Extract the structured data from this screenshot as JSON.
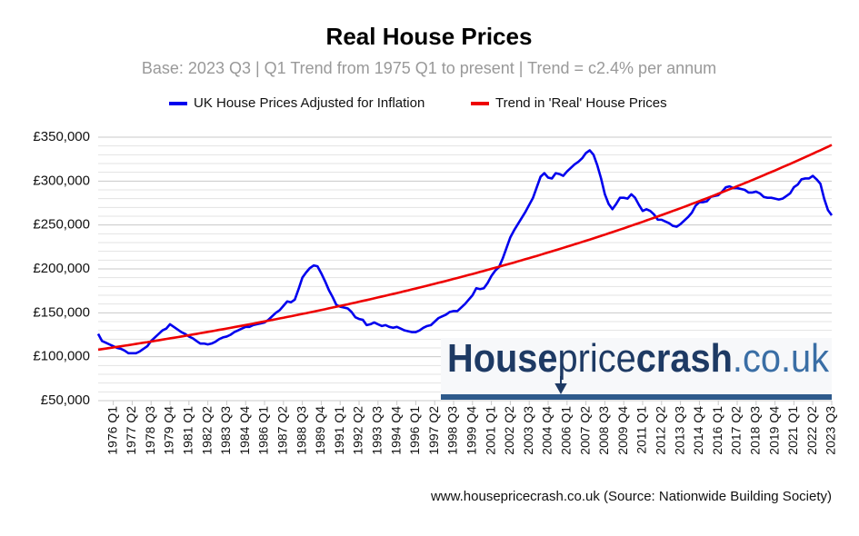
{
  "chart_data": {
    "type": "line",
    "title": "Real House Prices",
    "subtitle": "Base: 2023 Q3 | Q1 Trend from 1975 Q1 to present | Trend = c2.4% per annum",
    "footer": "www.housepricecrash.co.uk (Source: Nationwide Building Society)",
    "watermark": {
      "part1": "House",
      "part2": "price",
      "part3": "crash",
      "part4": ".co.uk"
    },
    "ylim": [
      50000,
      350000
    ],
    "yticks": [
      {
        "value": 50000,
        "label": "£50,000"
      },
      {
        "value": 100000,
        "label": "£100,000"
      },
      {
        "value": 150000,
        "label": "£150,000"
      },
      {
        "value": 200000,
        "label": "£200,000"
      },
      {
        "value": 250000,
        "label": "£250,000"
      },
      {
        "value": 300000,
        "label": "£300,000"
      },
      {
        "value": 350000,
        "label": "£350,000"
      }
    ],
    "minor_yticks": [
      60000,
      70000,
      80000,
      90000,
      110000,
      120000,
      130000,
      140000,
      160000,
      170000,
      180000,
      190000,
      210000,
      220000,
      230000,
      240000,
      260000,
      270000,
      280000,
      290000,
      310000,
      320000,
      330000,
      340000
    ],
    "grid": true,
    "categories": [
      null,
      null,
      null,
      null,
      "1976 Q1",
      null,
      null,
      null,
      null,
      "1977 Q2",
      null,
      null,
      null,
      null,
      "1978 Q3",
      null,
      null,
      null,
      null,
      "1979 Q4",
      null,
      null,
      null,
      null,
      "1981 Q1",
      null,
      null,
      null,
      null,
      "1982 Q2",
      null,
      null,
      null,
      null,
      "1983 Q3",
      null,
      null,
      null,
      null,
      "1984 Q4",
      null,
      null,
      null,
      null,
      "1986 Q1",
      null,
      null,
      null,
      null,
      "1987 Q2",
      null,
      null,
      null,
      null,
      "1988 Q3",
      null,
      null,
      null,
      null,
      "1989 Q4",
      null,
      null,
      null,
      null,
      "1991 Q1",
      null,
      null,
      null,
      null,
      "1992 Q2",
      null,
      null,
      null,
      null,
      "1993 Q3",
      null,
      null,
      null,
      null,
      "1994 Q4",
      null,
      null,
      null,
      null,
      "1996 Q1",
      null,
      null,
      null,
      null,
      "1997 Q2",
      null,
      null,
      null,
      null,
      "1998 Q3",
      null,
      null,
      null,
      null,
      "1999 Q4",
      null,
      null,
      null,
      null,
      "2001 Q1",
      null,
      null,
      null,
      null,
      "2002 Q2",
      null,
      null,
      null,
      null,
      "2003 Q3",
      null,
      null,
      null,
      null,
      "2004 Q4",
      null,
      null,
      null,
      null,
      "2006 Q1",
      null,
      null,
      null,
      null,
      "2007 Q2",
      null,
      null,
      null,
      null,
      "2008 Q3",
      null,
      null,
      null,
      null,
      "2009 Q4",
      null,
      null,
      null,
      null,
      "2011 Q1",
      null,
      null,
      null,
      null,
      "2012 Q2",
      null,
      null,
      null,
      null,
      "2013 Q3",
      null,
      null,
      null,
      null,
      "2014 Q4",
      null,
      null,
      null,
      null,
      "2016 Q1",
      null,
      null,
      null,
      null,
      "2017 Q2",
      null,
      null,
      null,
      null,
      "2018 Q3",
      null,
      null,
      null,
      null,
      "2019 Q4",
      null,
      null,
      null,
      null,
      "2021 Q1",
      null,
      null,
      null,
      null,
      "2022 Q2",
      null,
      null,
      null,
      null,
      "2023 Q3"
    ],
    "series": [
      {
        "name": "UK House Prices Adjusted for Inflation",
        "color": "#0000ee",
        "values": [
          126000,
          118000,
          116000,
          114000,
          112000,
          110000,
          109000,
          107000,
          104000,
          104000,
          104000,
          106000,
          109000,
          112000,
          118000,
          122000,
          126000,
          130000,
          132000,
          137000,
          134000,
          131000,
          128000,
          126000,
          123000,
          121000,
          118000,
          115000,
          115000,
          114000,
          115000,
          117000,
          120000,
          122000,
          123000,
          125000,
          128000,
          130000,
          132000,
          134000,
          134000,
          136000,
          137000,
          138000,
          139000,
          142000,
          146000,
          150000,
          153000,
          158000,
          163000,
          162000,
          165000,
          177000,
          190000,
          196000,
          201000,
          204000,
          203000,
          195000,
          186000,
          176000,
          168000,
          159000,
          157000,
          156000,
          155000,
          151000,
          145000,
          143000,
          142000,
          136000,
          137000,
          139000,
          137000,
          135000,
          136000,
          134000,
          133000,
          134000,
          132000,
          130000,
          129000,
          128000,
          128000,
          130000,
          133000,
          135000,
          136000,
          140000,
          144000,
          146000,
          148000,
          151000,
          152000,
          152000,
          156000,
          160000,
          165000,
          170000,
          178000,
          177000,
          178000,
          184000,
          192000,
          198000,
          202000,
          212000,
          224000,
          236000,
          244000,
          251000,
          258000,
          265000,
          273000,
          281000,
          293000,
          305000,
          309000,
          304000,
          303000,
          309000,
          308000,
          306000,
          311000,
          315000,
          319000,
          322000,
          326000,
          332000,
          335000,
          330000,
          318000,
          303000,
          285000,
          274000,
          268000,
          274000,
          281000,
          281000,
          280000,
          285000,
          281000,
          273000,
          266000,
          268000,
          266000,
          262000,
          256000,
          256000,
          254000,
          252000,
          249000,
          248000,
          251000,
          255000,
          259000,
          264000,
          272000,
          276000,
          276000,
          277000,
          282000,
          283000,
          284000,
          288000,
          293000,
          294000,
          292000,
          292000,
          291000,
          290000,
          287000,
          287000,
          288000,
          286000,
          282000,
          281000,
          281000,
          280000,
          279000,
          280000,
          283000,
          286000,
          293000,
          296000,
          302000,
          303000,
          303000,
          306000,
          302000,
          297000,
          280000,
          267000,
          261000
        ]
      },
      {
        "name": "Trend in 'Real' House Prices",
        "color": "#ee0000",
        "values": [
          108000,
          108600,
          109300,
          109900,
          110600,
          111300,
          111900,
          112600,
          113200,
          113900,
          114600,
          115300,
          116000,
          116600,
          117300,
          118000,
          118700,
          119500,
          120200,
          120900,
          121600,
          122300,
          123000,
          123800,
          124500,
          125300,
          126000,
          126800,
          127500,
          128300,
          129000,
          129800,
          130600,
          131300,
          132100,
          132900,
          133700,
          134500,
          135300,
          136100,
          136900,
          137700,
          138500,
          139400,
          140200,
          141000,
          141900,
          142700,
          143600,
          144400,
          145300,
          146100,
          147000,
          147900,
          148800,
          149600,
          150500,
          151400,
          152300,
          153200,
          154100,
          155100,
          156000,
          156900,
          157800,
          158800,
          159700,
          160700,
          161600,
          162600,
          163600,
          164500,
          165500,
          166500,
          167500,
          168500,
          169500,
          170500,
          171500,
          172500,
          173500,
          174600,
          175600,
          176700,
          177700,
          178800,
          179800,
          180900,
          182000,
          183100,
          184200,
          185200,
          186300,
          187500,
          188600,
          189700,
          190800,
          192000,
          193100,
          194200,
          195400,
          196600,
          197700,
          198900,
          200100,
          201300,
          202500,
          203700,
          204900,
          206100,
          207300,
          208600,
          209800,
          211100,
          212300,
          213600,
          214800,
          216100,
          217400,
          218700,
          220000,
          221300,
          222600,
          224000,
          225300,
          226600,
          228000,
          229300,
          230700,
          232100,
          233400,
          234800,
          236200,
          237600,
          239000,
          240500,
          241900,
          243300,
          244800,
          246200,
          247700,
          249200,
          250700,
          252100,
          253600,
          255200,
          256700,
          258200,
          259700,
          261300,
          262800,
          264400,
          266000,
          267500,
          269100,
          270700,
          272300,
          274000,
          275600,
          277200,
          278900,
          280500,
          282200,
          283900,
          285600,
          287300,
          289000,
          290700,
          292400,
          294200,
          295900,
          297700,
          299400,
          301200,
          303000,
          304800,
          306600,
          308500,
          310300,
          312100,
          314000,
          315900,
          317700,
          319600,
          321500,
          323400,
          325400,
          327300,
          329200,
          331200,
          333200,
          335100,
          337100,
          339100,
          341200
        ]
      }
    ]
  }
}
